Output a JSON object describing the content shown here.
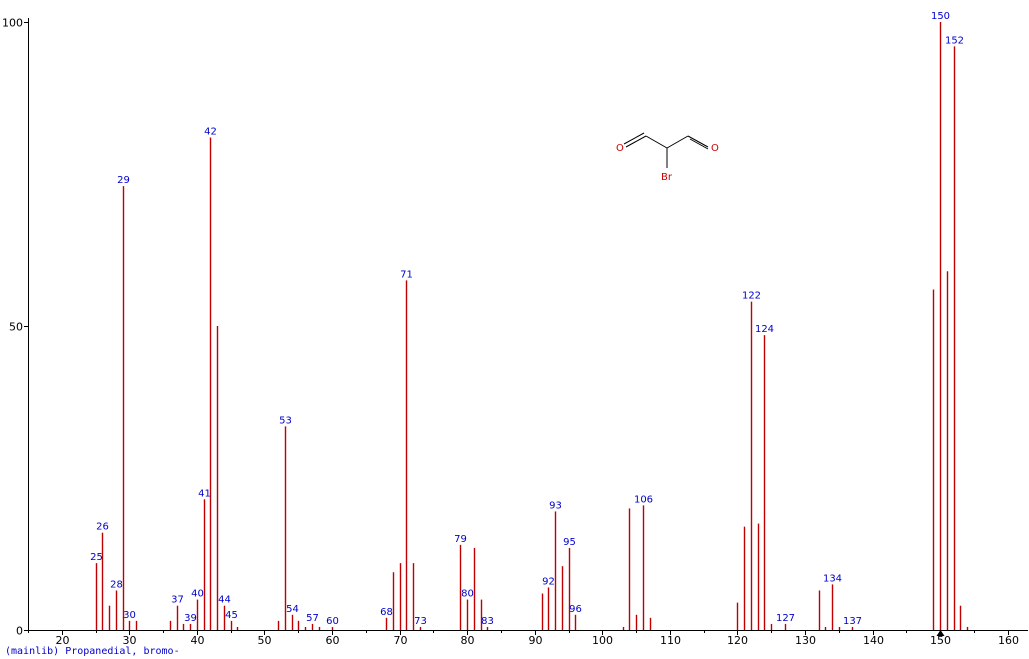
{
  "colors": {
    "bar": "#c00000",
    "label": "#0000cc",
    "axis": "#000000",
    "molecule_atom": "#cc0000"
  },
  "footer": {
    "text": "(mainlib) Propanedial, bromo-"
  },
  "molecule": {
    "atoms": [
      "O",
      "O",
      "Br"
    ]
  },
  "chart_data": {
    "type": "bar",
    "title": "",
    "xlabel": "",
    "ylabel": "",
    "xlim": [
      15,
      163
    ],
    "ylim": [
      0,
      100
    ],
    "x_ticks": [
      20,
      30,
      40,
      50,
      60,
      70,
      80,
      90,
      100,
      110,
      120,
      130,
      140,
      150,
      160
    ],
    "y_ticks": [
      0,
      50,
      100
    ],
    "grid": false,
    "legend": "none",
    "marker_x": 150,
    "peaks": [
      {
        "mz": 25,
        "intensity": 11,
        "label": "25"
      },
      {
        "mz": 26,
        "intensity": 16,
        "label": "26"
      },
      {
        "mz": 27,
        "intensity": 4,
        "label": ""
      },
      {
        "mz": 28,
        "intensity": 6.5,
        "label": "28"
      },
      {
        "mz": 29,
        "intensity": 73,
        "label": "29"
      },
      {
        "mz": 30,
        "intensity": 1.5,
        "label": "30"
      },
      {
        "mz": 31,
        "intensity": 1.5,
        "label": ""
      },
      {
        "mz": 36,
        "intensity": 1.5,
        "label": ""
      },
      {
        "mz": 37,
        "intensity": 4,
        "label": "37"
      },
      {
        "mz": 38,
        "intensity": 1,
        "label": ""
      },
      {
        "mz": 39,
        "intensity": 1,
        "label": "39"
      },
      {
        "mz": 40,
        "intensity": 5,
        "label": "40"
      },
      {
        "mz": 41,
        "intensity": 21.5,
        "label": "41"
      },
      {
        "mz": 42,
        "intensity": 81,
        "label": "42"
      },
      {
        "mz": 43,
        "intensity": 50,
        "label": ""
      },
      {
        "mz": 44,
        "intensity": 4,
        "label": "44"
      },
      {
        "mz": 45,
        "intensity": 1.5,
        "label": "45"
      },
      {
        "mz": 46,
        "intensity": 0.5,
        "label": ""
      },
      {
        "mz": 52,
        "intensity": 1.5,
        "label": ""
      },
      {
        "mz": 53,
        "intensity": 33.5,
        "label": "53"
      },
      {
        "mz": 54,
        "intensity": 2.5,
        "label": "54"
      },
      {
        "mz": 55,
        "intensity": 1.5,
        "label": ""
      },
      {
        "mz": 56,
        "intensity": 0.5,
        "label": ""
      },
      {
        "mz": 57,
        "intensity": 1,
        "label": "57"
      },
      {
        "mz": 58,
        "intensity": 0.5,
        "label": ""
      },
      {
        "mz": 60,
        "intensity": 0.5,
        "label": "60"
      },
      {
        "mz": 68,
        "intensity": 2,
        "label": "68"
      },
      {
        "mz": 69,
        "intensity": 9.5,
        "label": ""
      },
      {
        "mz": 70,
        "intensity": 11,
        "label": ""
      },
      {
        "mz": 71,
        "intensity": 57.5,
        "label": "71"
      },
      {
        "mz": 72,
        "intensity": 11,
        "label": ""
      },
      {
        "mz": 73,
        "intensity": 0.5,
        "label": "73"
      },
      {
        "mz": 79,
        "intensity": 14,
        "label": "79"
      },
      {
        "mz": 80,
        "intensity": 5,
        "label": "80"
      },
      {
        "mz": 81,
        "intensity": 13.5,
        "label": ""
      },
      {
        "mz": 82,
        "intensity": 5,
        "label": ""
      },
      {
        "mz": 83,
        "intensity": 0.5,
        "label": "83"
      },
      {
        "mz": 91,
        "intensity": 6,
        "label": ""
      },
      {
        "mz": 92,
        "intensity": 7,
        "label": "92"
      },
      {
        "mz": 93,
        "intensity": 19.5,
        "label": "93"
      },
      {
        "mz": 94,
        "intensity": 10.5,
        "label": ""
      },
      {
        "mz": 95,
        "intensity": 13.5,
        "label": "95"
      },
      {
        "mz": 96,
        "intensity": 2.5,
        "label": "96"
      },
      {
        "mz": 103,
        "intensity": 0.5,
        "label": ""
      },
      {
        "mz": 104,
        "intensity": 20,
        "label": ""
      },
      {
        "mz": 105,
        "intensity": 2.5,
        "label": ""
      },
      {
        "mz": 106,
        "intensity": 20.5,
        "label": "106"
      },
      {
        "mz": 107,
        "intensity": 2,
        "label": ""
      },
      {
        "mz": 120,
        "intensity": 4.5,
        "label": ""
      },
      {
        "mz": 121,
        "intensity": 17,
        "label": ""
      },
      {
        "mz": 122,
        "intensity": 54,
        "label": "122"
      },
      {
        "mz": 123,
        "intensity": 17.5,
        "label": ""
      },
      {
        "mz": 124,
        "intensity": 48.5,
        "label": "124"
      },
      {
        "mz": 125,
        "intensity": 1,
        "label": ""
      },
      {
        "mz": 127,
        "intensity": 1,
        "label": "127"
      },
      {
        "mz": 132,
        "intensity": 6.5,
        "label": ""
      },
      {
        "mz": 133,
        "intensity": 0.5,
        "label": ""
      },
      {
        "mz": 134,
        "intensity": 7.5,
        "label": "134"
      },
      {
        "mz": 135,
        "intensity": 0.5,
        "label": ""
      },
      {
        "mz": 137,
        "intensity": 0.5,
        "label": "137"
      },
      {
        "mz": 149,
        "intensity": 56,
        "label": ""
      },
      {
        "mz": 150,
        "intensity": 100,
        "label": "150"
      },
      {
        "mz": 151,
        "intensity": 59,
        "label": ""
      },
      {
        "mz": 152,
        "intensity": 96,
        "label": "152"
      },
      {
        "mz": 153,
        "intensity": 4,
        "label": ""
      },
      {
        "mz": 154,
        "intensity": 0.5,
        "label": ""
      }
    ]
  }
}
